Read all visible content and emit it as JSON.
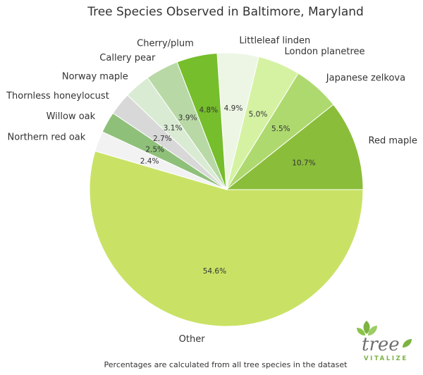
{
  "chart_data": {
    "type": "pie",
    "title": "Tree Species Observed in Baltimore, Maryland",
    "footnote": "Percentages are calculated from all tree species in the dataset",
    "slices": [
      {
        "label": "Red maple",
        "value": 10.7,
        "pct_label": "10.7%",
        "color": "#8abd3a"
      },
      {
        "label": "Japanese zelkova",
        "value": 5.5,
        "pct_label": "5.5%",
        "color": "#aed96f"
      },
      {
        "label": "London planetree",
        "value": 5.0,
        "pct_label": "5.0%",
        "color": "#d5f2a3"
      },
      {
        "label": "Littleleaf linden",
        "value": 4.9,
        "pct_label": "4.9%",
        "color": "#edf6e4"
      },
      {
        "label": "Cherry/plum",
        "value": 4.8,
        "pct_label": "4.8%",
        "color": "#76be2b"
      },
      {
        "label": "Callery pear",
        "value": 3.9,
        "pct_label": "3.9%",
        "color": "#b8d9a6"
      },
      {
        "label": "Norway maple",
        "value": 3.1,
        "pct_label": "3.1%",
        "color": "#d9ebd3"
      },
      {
        "label": "Thornless honeylocust",
        "value": 2.7,
        "pct_label": "2.7%",
        "color": "#d8d8d8"
      },
      {
        "label": "Willow oak",
        "value": 2.5,
        "pct_label": "2.5%",
        "color": "#8fc07a"
      },
      {
        "label": "Northern red oak",
        "value": 2.4,
        "pct_label": "2.4%",
        "color": "#f2f2f2"
      },
      {
        "label": "Other",
        "value": 54.6,
        "pct_label": "54.6%",
        "color": "#c9e265"
      }
    ]
  },
  "logo": {
    "word": "tree",
    "sub": "VITALIZE",
    "leaf_color": "#7cb342"
  }
}
